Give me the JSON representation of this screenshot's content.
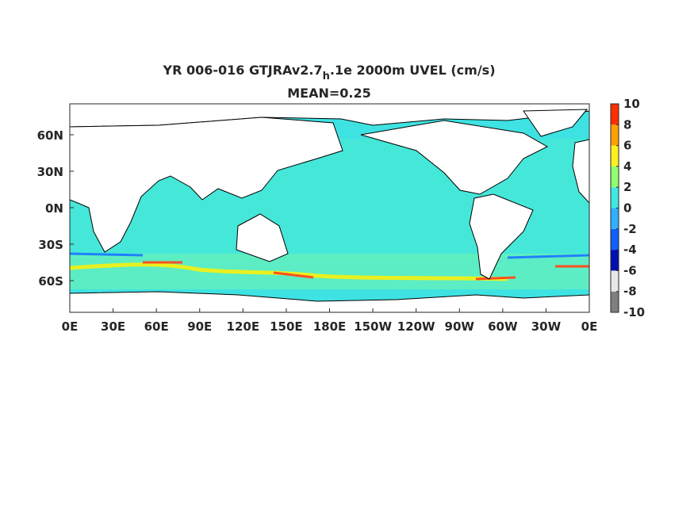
{
  "title": {
    "prefix": "YR 006-016 GTJRAv2.7",
    "subscript": "h",
    "suffix": ".1e 2000m UVEL (cm/s)"
  },
  "subtitle": "MEAN=0.25",
  "x_ticks": [
    "0E",
    "30E",
    "60E",
    "90E",
    "120E",
    "150E",
    "180E",
    "150W",
    "120W",
    "90W",
    "60W",
    "30W",
    "0E"
  ],
  "y_ticks": [
    "60N",
    "30N",
    "0N",
    "30S",
    "60S"
  ],
  "colorbar": {
    "lim": [
      -10,
      10
    ],
    "ticks": [
      10,
      8,
      6,
      4,
      2,
      0,
      -2,
      -4,
      -6,
      -8,
      -10
    ],
    "colors": [
      "#7f7f7f",
      "#e8e8e8",
      "#0010b0",
      "#1060ff",
      "#30b0ff",
      "#40e8e0",
      "#90ff70",
      "#fff020",
      "#ffa000",
      "#ff3000"
    ]
  }
}
